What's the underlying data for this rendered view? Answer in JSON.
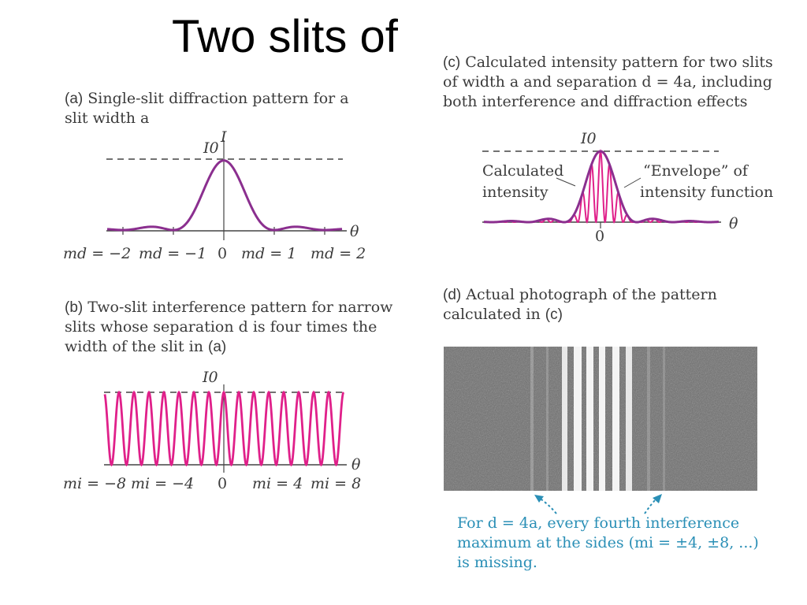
{
  "slide": {
    "title": "Two slits of"
  },
  "panel_a": {
    "letter": "(a)",
    "caption_line1": "Single-slit diffraction pattern for a",
    "caption_line2": "slit width a",
    "y_label": "I",
    "peak_label": "I0",
    "x_symbol": "θ",
    "ticks": [
      "md = −2",
      "md = −1",
      "0",
      "md = 1",
      "md = 2"
    ]
  },
  "panel_b": {
    "letter": "(b)",
    "caption_line1": "Two-slit interference pattern for narrow",
    "caption_line2": "slits whose separation d is four times the",
    "caption_line3": "width of the slit in",
    "caption_ref": "(a)",
    "peak_label": "I0",
    "x_symbol": "θ",
    "ticks": [
      "mi = −8",
      "mi = −4",
      "0",
      "mi = 4",
      "mi = 8"
    ]
  },
  "panel_c": {
    "letter": "(c)",
    "caption_line1": "Calculated intensity pattern for two slits",
    "caption_line2": "of width a and separation d = 4a, including",
    "caption_line3": "both interference and diffraction effects",
    "peak_label": "I0",
    "left_annotation_1": "Calculated",
    "left_annotation_2": "intensity",
    "right_annotation_1": "“Envelope” of",
    "right_annotation_2": "intensity function",
    "x_symbol": "θ",
    "zero_label": "0"
  },
  "panel_d": {
    "letter": "(d)",
    "caption_line1": "Actual photograph of the pattern",
    "caption_line2": "calculated in",
    "caption_ref": "(c)",
    "note_line1": "For d = 4a, every fourth interference",
    "note_line2": "maximum at the sides (mi = ±4, ±8, ...)",
    "note_line3": "is missing."
  },
  "colors": {
    "envelope": "#8b2f8f",
    "interference": "#e0208a",
    "note": "#2a8fb6",
    "photo_bg": "#6d6d6d"
  }
}
